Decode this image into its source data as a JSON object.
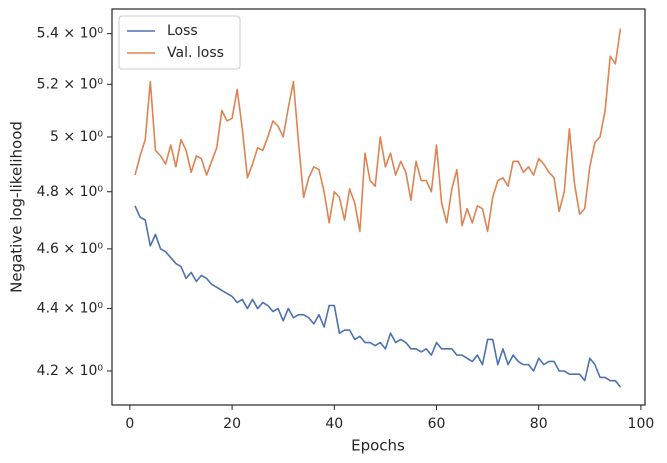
{
  "chart_data": {
    "type": "line",
    "xlabel": "Epochs",
    "ylabel": "Negative log-likelihood",
    "x": [
      1,
      2,
      3,
      4,
      5,
      6,
      7,
      8,
      9,
      10,
      11,
      12,
      13,
      14,
      15,
      16,
      17,
      18,
      19,
      20,
      21,
      22,
      23,
      24,
      25,
      26,
      27,
      28,
      29,
      30,
      31,
      32,
      33,
      34,
      35,
      36,
      37,
      38,
      39,
      40,
      41,
      42,
      43,
      44,
      45,
      46,
      47,
      48,
      49,
      50,
      51,
      52,
      53,
      54,
      55,
      56,
      57,
      58,
      59,
      60,
      61,
      62,
      63,
      64,
      65,
      66,
      67,
      68,
      69,
      70,
      71,
      72,
      73,
      74,
      75,
      76,
      77,
      78,
      79,
      80,
      81,
      82,
      83,
      84,
      85,
      86,
      87,
      88,
      89,
      90,
      91,
      92,
      93,
      94,
      95,
      96
    ],
    "series": [
      {
        "name": "Loss",
        "color": "#4c72b0",
        "values": [
          4.75,
          4.71,
          4.7,
          4.61,
          4.65,
          4.6,
          4.59,
          4.57,
          4.55,
          4.54,
          4.5,
          4.52,
          4.49,
          4.51,
          4.5,
          4.48,
          4.47,
          4.46,
          4.45,
          4.44,
          4.42,
          4.43,
          4.4,
          4.43,
          4.4,
          4.42,
          4.41,
          4.39,
          4.4,
          4.36,
          4.4,
          4.37,
          4.38,
          4.38,
          4.37,
          4.35,
          4.38,
          4.34,
          4.41,
          4.41,
          4.32,
          4.33,
          4.33,
          4.3,
          4.31,
          4.29,
          4.29,
          4.28,
          4.29,
          4.27,
          4.32,
          4.29,
          4.3,
          4.29,
          4.27,
          4.27,
          4.26,
          4.27,
          4.25,
          4.29,
          4.27,
          4.27,
          4.27,
          4.25,
          4.25,
          4.24,
          4.23,
          4.25,
          4.22,
          4.3,
          4.3,
          4.22,
          4.27,
          4.22,
          4.25,
          4.23,
          4.22,
          4.22,
          4.2,
          4.24,
          4.22,
          4.23,
          4.23,
          4.2,
          4.2,
          4.19,
          4.19,
          4.19,
          4.17,
          4.24,
          4.22,
          4.18,
          4.18,
          4.17,
          4.17,
          4.15
        ]
      },
      {
        "name": "Val. loss",
        "color": "#dd8452",
        "values": [
          4.86,
          4.93,
          4.99,
          5.21,
          4.95,
          4.93,
          4.9,
          4.97,
          4.89,
          4.99,
          4.95,
          4.87,
          4.93,
          4.92,
          4.86,
          4.91,
          4.96,
          5.1,
          5.06,
          5.07,
          5.18,
          5.03,
          4.85,
          4.9,
          4.96,
          4.95,
          5.0,
          5.06,
          5.04,
          5.0,
          5.11,
          5.21,
          4.98,
          4.78,
          4.85,
          4.89,
          4.88,
          4.8,
          4.69,
          4.8,
          4.78,
          4.7,
          4.81,
          4.76,
          4.66,
          4.94,
          4.84,
          4.82,
          5.0,
          4.89,
          4.94,
          4.86,
          4.91,
          4.87,
          4.77,
          4.91,
          4.84,
          4.84,
          4.8,
          4.97,
          4.76,
          4.69,
          4.81,
          4.88,
          4.68,
          4.74,
          4.69,
          4.75,
          4.74,
          4.66,
          4.78,
          4.84,
          4.85,
          4.82,
          4.91,
          4.91,
          4.87,
          4.89,
          4.86,
          4.92,
          4.9,
          4.87,
          4.85,
          4.73,
          4.8,
          5.03,
          4.83,
          4.72,
          4.74,
          4.89,
          4.98,
          5.0,
          5.1,
          5.31,
          5.28,
          5.42
        ]
      }
    ],
    "xlim": [
      -3.5,
      100.8
    ],
    "xticks": [
      0,
      20,
      40,
      60,
      80,
      100
    ],
    "ylim": [
      4.095,
      5.5
    ],
    "yscale": "log",
    "yticks": [
      {
        "value": 4.2,
        "label": "4.2 × 10⁰"
      },
      {
        "value": 4.4,
        "label": "4.4 × 10⁰"
      },
      {
        "value": 4.6,
        "label": "4.6 × 10⁰"
      },
      {
        "value": 4.8,
        "label": "4.8 × 10⁰"
      },
      {
        "value": 5.0,
        "label": "5 × 10⁰"
      },
      {
        "value": 5.2,
        "label": "5.2 × 10⁰"
      },
      {
        "value": 5.4,
        "label": "5.4 × 10⁰"
      }
    ],
    "grid": false,
    "legend": "upper left"
  }
}
